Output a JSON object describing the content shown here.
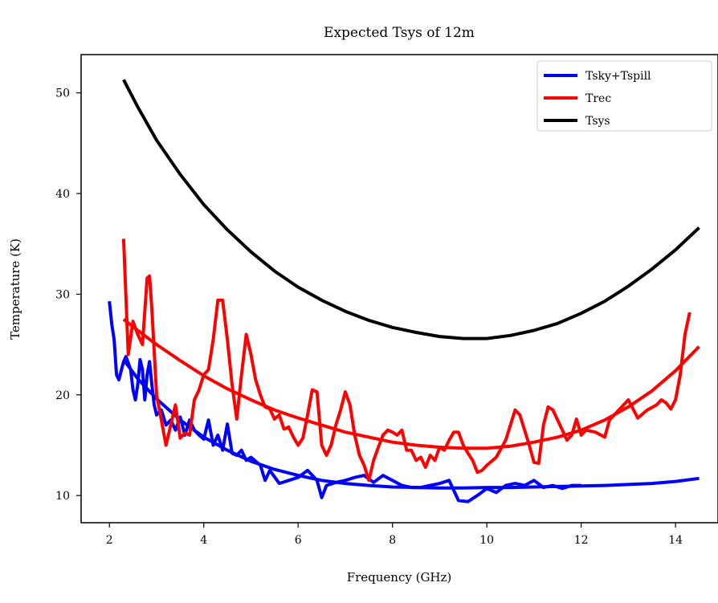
{
  "chart_data": {
    "type": "line",
    "title": "Expected Tsys of 12m",
    "xlabel": "Frequency (GHz)",
    "ylabel": "Temperature (K)",
    "xlim": [
      1.4,
      14.9
    ],
    "ylim": [
      7.3,
      53.8
    ],
    "xticks": [
      2,
      4,
      6,
      8,
      10,
      12,
      14
    ],
    "yticks": [
      10,
      20,
      30,
      40,
      50
    ],
    "legend_position": "top-right",
    "grid": false,
    "series": [
      {
        "name": "Tsky+Tspill",
        "color": "#0000ff",
        "points": [
          [
            2.0,
            29.3
          ],
          [
            2.05,
            27.0
          ],
          [
            2.1,
            25.5
          ],
          [
            2.15,
            22.0
          ],
          [
            2.2,
            21.5
          ],
          [
            2.3,
            23.3
          ],
          [
            2.35,
            23.8
          ],
          [
            2.45,
            22.5
          ],
          [
            2.5,
            20.5
          ],
          [
            2.55,
            19.5
          ],
          [
            2.6,
            21.0
          ],
          [
            2.65,
            23.5
          ],
          [
            2.7,
            22.5
          ],
          [
            2.75,
            19.5
          ],
          [
            2.8,
            22.0
          ],
          [
            2.85,
            23.3
          ],
          [
            2.9,
            21.0
          ],
          [
            2.95,
            19.0
          ],
          [
            3.0,
            18.0
          ],
          [
            3.1,
            18.5
          ],
          [
            3.2,
            17.0
          ],
          [
            3.3,
            17.5
          ],
          [
            3.4,
            16.5
          ],
          [
            3.5,
            17.8
          ],
          [
            3.6,
            16.0
          ],
          [
            3.7,
            17.5
          ],
          [
            3.8,
            16.5
          ],
          [
            3.9,
            16.0
          ],
          [
            4.0,
            15.6
          ],
          [
            4.1,
            17.5
          ],
          [
            4.2,
            15.0
          ],
          [
            4.3,
            16.0
          ],
          [
            4.4,
            14.5
          ],
          [
            4.5,
            17.1
          ],
          [
            4.6,
            14.2
          ],
          [
            4.7,
            14.0
          ],
          [
            4.8,
            14.5
          ],
          [
            4.9,
            13.5
          ],
          [
            5.0,
            13.8
          ],
          [
            5.2,
            13.0
          ],
          [
            5.3,
            11.5
          ],
          [
            5.4,
            12.5
          ],
          [
            5.6,
            11.2
          ],
          [
            5.8,
            11.5
          ],
          [
            6.0,
            11.8
          ],
          [
            6.2,
            12.5
          ],
          [
            6.4,
            11.5
          ],
          [
            6.5,
            9.8
          ],
          [
            6.6,
            11.0
          ],
          [
            6.8,
            11.3
          ],
          [
            7.0,
            11.5
          ],
          [
            7.2,
            11.8
          ],
          [
            7.4,
            12.0
          ],
          [
            7.6,
            11.3
          ],
          [
            7.8,
            12.0
          ],
          [
            8.0,
            11.5
          ],
          [
            8.2,
            11.0
          ],
          [
            8.4,
            10.8
          ],
          [
            8.6,
            10.8
          ],
          [
            8.8,
            11.0
          ],
          [
            9.0,
            11.2
          ],
          [
            9.2,
            11.5
          ],
          [
            9.4,
            9.5
          ],
          [
            9.6,
            9.4
          ],
          [
            9.8,
            10.0
          ],
          [
            10.0,
            10.7
          ],
          [
            10.2,
            10.3
          ],
          [
            10.4,
            11.0
          ],
          [
            10.6,
            11.2
          ],
          [
            10.8,
            11.0
          ],
          [
            11.0,
            11.5
          ],
          [
            11.2,
            10.8
          ],
          [
            11.4,
            11.0
          ],
          [
            11.6,
            10.7
          ],
          [
            11.8,
            11.0
          ],
          [
            12.0,
            11.0
          ]
        ]
      },
      {
        "name": "",
        "color": "#0000ff",
        "points": [
          [
            2.3,
            23.5
          ],
          [
            2.6,
            21.6
          ],
          [
            3.0,
            19.6
          ],
          [
            3.5,
            17.5
          ],
          [
            4.0,
            15.8
          ],
          [
            4.5,
            14.5
          ],
          [
            5.0,
            13.4
          ],
          [
            5.5,
            12.6
          ],
          [
            6.0,
            12.0
          ],
          [
            6.5,
            11.5
          ],
          [
            7.0,
            11.2
          ],
          [
            7.5,
            11.0
          ],
          [
            8.0,
            10.85
          ],
          [
            8.5,
            10.8
          ],
          [
            9.0,
            10.75
          ],
          [
            9.5,
            10.75
          ],
          [
            10.0,
            10.8
          ],
          [
            10.5,
            10.8
          ],
          [
            11.0,
            10.85
          ],
          [
            11.5,
            10.9
          ],
          [
            12.0,
            10.95
          ],
          [
            12.5,
            11.0
          ],
          [
            13.0,
            11.1
          ],
          [
            13.5,
            11.2
          ],
          [
            14.0,
            11.4
          ],
          [
            14.5,
            11.7
          ]
        ]
      },
      {
        "name": "Trec",
        "color": "#ff0000",
        "points": [
          [
            2.3,
            35.5
          ],
          [
            2.4,
            24.0
          ],
          [
            2.5,
            27.3
          ],
          [
            2.6,
            26.0
          ],
          [
            2.7,
            25.0
          ],
          [
            2.8,
            31.6
          ],
          [
            2.85,
            31.8
          ],
          [
            2.9,
            28.5
          ],
          [
            3.0,
            20.0
          ],
          [
            3.1,
            17.5
          ],
          [
            3.2,
            15.0
          ],
          [
            3.3,
            17.0
          ],
          [
            3.4,
            19.0
          ],
          [
            3.5,
            15.7
          ],
          [
            3.6,
            16.2
          ],
          [
            3.7,
            16.0
          ],
          [
            3.8,
            19.5
          ],
          [
            3.9,
            20.5
          ],
          [
            4.0,
            22.0
          ],
          [
            4.1,
            22.5
          ],
          [
            4.2,
            25.5
          ],
          [
            4.3,
            29.4
          ],
          [
            4.4,
            29.4
          ],
          [
            4.5,
            25.5
          ],
          [
            4.6,
            21.0
          ],
          [
            4.7,
            17.6
          ],
          [
            4.8,
            22.0
          ],
          [
            4.9,
            26.0
          ],
          [
            5.0,
            24.0
          ],
          [
            5.1,
            21.5
          ],
          [
            5.2,
            20.0
          ],
          [
            5.3,
            18.8
          ],
          [
            5.4,
            18.6
          ],
          [
            5.5,
            17.6
          ],
          [
            5.6,
            18.0
          ],
          [
            5.7,
            16.6
          ],
          [
            5.8,
            16.8
          ],
          [
            5.9,
            15.8
          ],
          [
            6.0,
            15.0
          ],
          [
            6.1,
            15.7
          ],
          [
            6.2,
            18.0
          ],
          [
            6.3,
            20.5
          ],
          [
            6.4,
            20.3
          ],
          [
            6.5,
            15.0
          ],
          [
            6.6,
            14.0
          ],
          [
            6.7,
            15.0
          ],
          [
            6.8,
            17.0
          ],
          [
            6.9,
            18.5
          ],
          [
            7.0,
            20.3
          ],
          [
            7.1,
            19.0
          ],
          [
            7.2,
            16.0
          ],
          [
            7.3,
            14.0
          ],
          [
            7.4,
            13.0
          ],
          [
            7.5,
            11.5
          ],
          [
            7.6,
            13.5
          ],
          [
            7.7,
            14.8
          ],
          [
            7.8,
            16.0
          ],
          [
            7.9,
            16.5
          ],
          [
            8.0,
            16.3
          ],
          [
            8.1,
            16.0
          ],
          [
            8.2,
            16.5
          ],
          [
            8.3,
            14.5
          ],
          [
            8.4,
            14.5
          ],
          [
            8.5,
            13.5
          ],
          [
            8.6,
            13.8
          ],
          [
            8.7,
            12.8
          ],
          [
            8.8,
            14.0
          ],
          [
            8.9,
            13.5
          ],
          [
            9.0,
            14.8
          ],
          [
            9.1,
            14.5
          ],
          [
            9.2,
            15.5
          ],
          [
            9.3,
            16.3
          ],
          [
            9.4,
            16.3
          ],
          [
            9.5,
            15.0
          ],
          [
            9.6,
            14.2
          ],
          [
            9.7,
            13.5
          ],
          [
            9.8,
            12.3
          ],
          [
            9.9,
            12.5
          ],
          [
            10.0,
            13.0
          ],
          [
            10.2,
            13.8
          ],
          [
            10.4,
            15.5
          ],
          [
            10.6,
            18.5
          ],
          [
            10.7,
            18.0
          ],
          [
            10.8,
            16.5
          ],
          [
            10.9,
            15.0
          ],
          [
            11.0,
            13.3
          ],
          [
            11.1,
            13.2
          ],
          [
            11.2,
            17.0
          ],
          [
            11.3,
            18.8
          ],
          [
            11.4,
            18.5
          ],
          [
            11.5,
            17.5
          ],
          [
            11.6,
            16.5
          ],
          [
            11.7,
            15.5
          ],
          [
            11.8,
            16.0
          ],
          [
            11.9,
            17.6
          ],
          [
            12.0,
            16.0
          ],
          [
            12.1,
            16.5
          ],
          [
            12.3,
            16.3
          ],
          [
            12.5,
            15.8
          ],
          [
            12.6,
            17.5
          ],
          [
            12.8,
            18.5
          ],
          [
            13.0,
            19.5
          ],
          [
            13.2,
            17.7
          ],
          [
            13.4,
            18.5
          ],
          [
            13.6,
            19.0
          ],
          [
            13.7,
            19.5
          ],
          [
            13.8,
            19.2
          ],
          [
            13.9,
            18.6
          ],
          [
            14.0,
            19.5
          ],
          [
            14.1,
            22.0
          ],
          [
            14.2,
            26.0
          ],
          [
            14.3,
            28.2
          ]
        ]
      },
      {
        "name": "",
        "color": "#ff0000",
        "points": [
          [
            2.3,
            27.5
          ],
          [
            2.6,
            26.4
          ],
          [
            3.0,
            25.0
          ],
          [
            3.5,
            23.4
          ],
          [
            4.0,
            21.9
          ],
          [
            4.5,
            20.6
          ],
          [
            5.0,
            19.5
          ],
          [
            5.5,
            18.5
          ],
          [
            6.0,
            17.7
          ],
          [
            6.5,
            17.0
          ],
          [
            7.0,
            16.3
          ],
          [
            7.5,
            15.8
          ],
          [
            8.0,
            15.3
          ],
          [
            8.5,
            15.0
          ],
          [
            9.0,
            14.8
          ],
          [
            9.5,
            14.7
          ],
          [
            10.0,
            14.7
          ],
          [
            10.5,
            14.9
          ],
          [
            11.0,
            15.3
          ],
          [
            11.5,
            15.8
          ],
          [
            12.0,
            16.5
          ],
          [
            12.5,
            17.5
          ],
          [
            13.0,
            18.8
          ],
          [
            13.5,
            20.4
          ],
          [
            14.0,
            22.4
          ],
          [
            14.5,
            24.8
          ]
        ]
      },
      {
        "name": "Tsys",
        "color": "#000000",
        "points": [
          [
            2.3,
            51.3
          ],
          [
            2.6,
            48.6
          ],
          [
            3.0,
            45.3
          ],
          [
            3.5,
            41.9
          ],
          [
            4.0,
            38.9
          ],
          [
            4.5,
            36.4
          ],
          [
            5.0,
            34.2
          ],
          [
            5.5,
            32.3
          ],
          [
            6.0,
            30.7
          ],
          [
            6.5,
            29.4
          ],
          [
            7.0,
            28.3
          ],
          [
            7.5,
            27.4
          ],
          [
            8.0,
            26.7
          ],
          [
            8.5,
            26.2
          ],
          [
            9.0,
            25.8
          ],
          [
            9.5,
            25.6
          ],
          [
            10.0,
            25.6
          ],
          [
            10.5,
            25.9
          ],
          [
            11.0,
            26.4
          ],
          [
            11.5,
            27.1
          ],
          [
            12.0,
            28.1
          ],
          [
            12.5,
            29.3
          ],
          [
            13.0,
            30.8
          ],
          [
            13.5,
            32.5
          ],
          [
            14.0,
            34.4
          ],
          [
            14.5,
            36.6
          ]
        ]
      }
    ]
  }
}
